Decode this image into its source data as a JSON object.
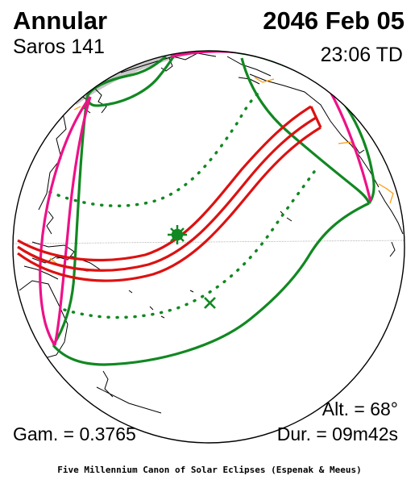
{
  "header": {
    "eclipse_type": "Annular",
    "date": "2046 Feb 05",
    "saros": "Saros 141",
    "time": "23:06 TD"
  },
  "stats": {
    "gamma": "Gam. = 0.3765",
    "altitude": "Alt. = 68°",
    "duration": "Dur. = 09m42s"
  },
  "footer": "Five Millennium Canon of Solar Eclipses (Espenak & Meeus)",
  "colors": {
    "central_path": "#dd1111",
    "penumbra_limits": "#118822",
    "rise_set_curves": "#ee1188",
    "night_shade": "#c8c8c8",
    "coast": "#000000",
    "borders": "#ff9900"
  },
  "markers": {
    "greatest_eclipse": "star-marker",
    "sub_solar_point": "cross-marker"
  }
}
